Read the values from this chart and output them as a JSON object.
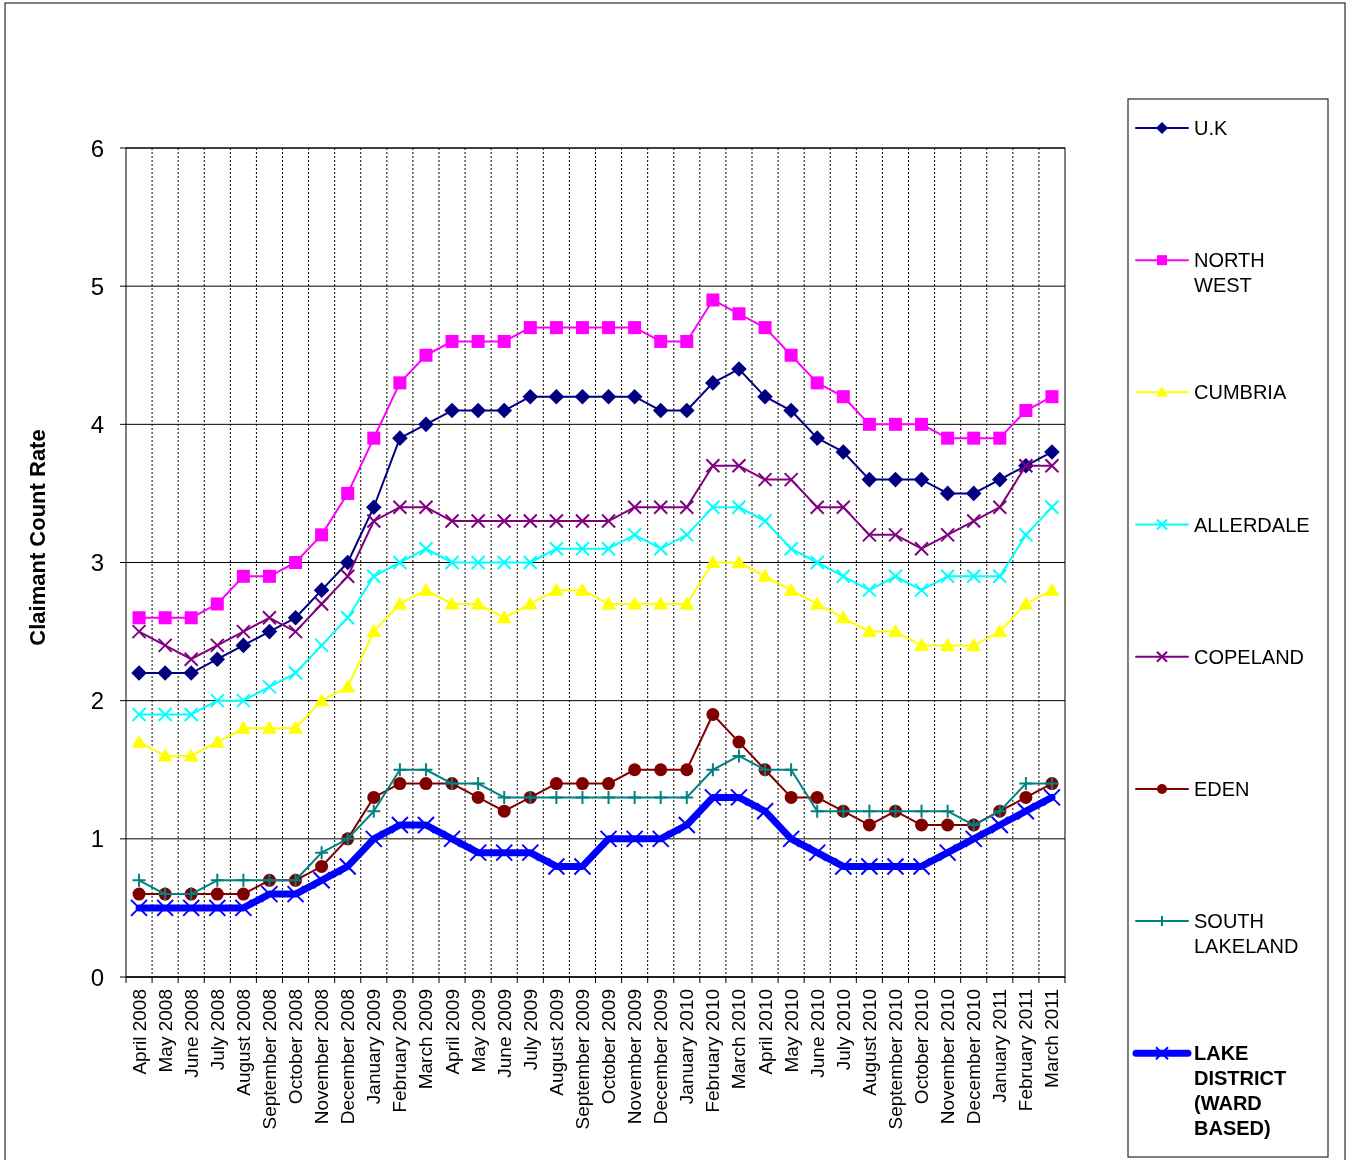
{
  "chart_data": {
    "type": "line",
    "ylabel": "Claimant Count Rate",
    "categories": [
      "April 2008",
      "May 2008",
      "June 2008",
      "July 2008",
      "August 2008",
      "September 2008",
      "October 2008",
      "November 2008",
      "December 2008",
      "January 2009",
      "February 2009",
      "March 2009",
      "April 2009",
      "May 2009",
      "June 2009",
      "July 2009",
      "August 2009",
      "September 2009",
      "October 2009",
      "November 2009",
      "December 2009",
      "January 2010",
      "February 2010",
      "March 2010",
      "April 2010",
      "May 2010",
      "June 2010",
      "July 2010",
      "August 2010",
      "September 2010",
      "October 2010",
      "November 2010",
      "December 2010",
      "January 2011",
      "February 2011",
      "March 2011"
    ],
    "series": [
      {
        "name": "U.K",
        "color": "#000080",
        "marker": "diamond",
        "values": [
          2.2,
          2.2,
          2.2,
          2.3,
          2.4,
          2.5,
          2.6,
          2.8,
          3.0,
          3.4,
          3.9,
          4.0,
          4.1,
          4.1,
          4.1,
          4.2,
          4.2,
          4.2,
          4.2,
          4.2,
          4.1,
          4.1,
          4.3,
          4.4,
          4.2,
          4.1,
          3.9,
          3.8,
          3.6,
          3.6,
          3.6,
          3.5,
          3.5,
          3.6,
          3.7,
          3.8
        ]
      },
      {
        "name": "NORTH WEST",
        "color": "#ff00ff",
        "marker": "square",
        "values": [
          2.6,
          2.6,
          2.6,
          2.7,
          2.9,
          2.9,
          3.0,
          3.2,
          3.5,
          3.9,
          4.3,
          4.5,
          4.6,
          4.6,
          4.6,
          4.7,
          4.7,
          4.7,
          4.7,
          4.7,
          4.6,
          4.6,
          4.9,
          4.8,
          4.7,
          4.5,
          4.3,
          4.2,
          4.0,
          4.0,
          4.0,
          3.9,
          3.9,
          3.9,
          4.1,
          4.2
        ]
      },
      {
        "name": "CUMBRIA",
        "color": "#ffff00",
        "marker": "triangle",
        "values": [
          1.7,
          1.6,
          1.6,
          1.7,
          1.8,
          1.8,
          1.8,
          2.0,
          2.1,
          2.5,
          2.7,
          2.8,
          2.7,
          2.7,
          2.6,
          2.7,
          2.8,
          2.8,
          2.7,
          2.7,
          2.7,
          2.7,
          3.0,
          3.0,
          2.9,
          2.8,
          2.7,
          2.6,
          2.5,
          2.5,
          2.4,
          2.4,
          2.4,
          2.5,
          2.7,
          2.8
        ]
      },
      {
        "name": "ALLERDALE",
        "color": "#00ffff",
        "marker": "cross",
        "values": [
          1.9,
          1.9,
          1.9,
          2.0,
          2.0,
          2.1,
          2.2,
          2.4,
          2.6,
          2.9,
          3.0,
          3.1,
          3.0,
          3.0,
          3.0,
          3.0,
          3.1,
          3.1,
          3.1,
          3.2,
          3.1,
          3.2,
          3.4,
          3.4,
          3.3,
          3.1,
          3.0,
          2.9,
          2.8,
          2.9,
          2.8,
          2.9,
          2.9,
          2.9,
          3.2,
          3.4
        ]
      },
      {
        "name": "COPELAND",
        "color": "#800080",
        "marker": "cross",
        "values": [
          2.5,
          2.4,
          2.3,
          2.4,
          2.5,
          2.6,
          2.5,
          2.7,
          2.9,
          3.3,
          3.4,
          3.4,
          3.3,
          3.3,
          3.3,
          3.3,
          3.3,
          3.3,
          3.3,
          3.4,
          3.4,
          3.4,
          3.7,
          3.7,
          3.6,
          3.6,
          3.4,
          3.4,
          3.2,
          3.2,
          3.1,
          3.2,
          3.3,
          3.4,
          3.7,
          3.7
        ]
      },
      {
        "name": "EDEN",
        "color": "#800000",
        "marker": "circle",
        "values": [
          0.6,
          0.6,
          0.6,
          0.6,
          0.6,
          0.7,
          0.7,
          0.8,
          1.0,
          1.3,
          1.4,
          1.4,
          1.4,
          1.3,
          1.2,
          1.3,
          1.4,
          1.4,
          1.4,
          1.5,
          1.5,
          1.5,
          1.9,
          1.7,
          1.5,
          1.3,
          1.3,
          1.2,
          1.1,
          1.2,
          1.1,
          1.1,
          1.1,
          1.2,
          1.3,
          1.4
        ]
      },
      {
        "name": "SOUTH LAKELAND",
        "color": "#008080",
        "marker": "plus",
        "values": [
          0.7,
          0.6,
          0.6,
          0.7,
          0.7,
          0.7,
          0.7,
          0.9,
          1.0,
          1.2,
          1.5,
          1.5,
          1.4,
          1.4,
          1.3,
          1.3,
          1.3,
          1.3,
          1.3,
          1.3,
          1.3,
          1.3,
          1.5,
          1.6,
          1.5,
          1.5,
          1.2,
          1.2,
          1.2,
          1.2,
          1.2,
          1.2,
          1.1,
          1.2,
          1.4,
          1.4
        ]
      },
      {
        "name": "LAKE DISTRICT (WARD BASED)",
        "color": "#0000ff",
        "marker": "cross",
        "values": [
          0.5,
          0.5,
          0.5,
          0.5,
          0.5,
          0.6,
          0.6,
          0.7,
          0.8,
          1.0,
          1.1,
          1.1,
          1.0,
          0.9,
          0.9,
          0.9,
          0.8,
          0.8,
          1.0,
          1.0,
          1.0,
          1.1,
          1.3,
          1.3,
          1.2,
          1.0,
          0.9,
          0.8,
          0.8,
          0.8,
          0.8,
          0.9,
          1.0,
          1.1,
          1.2,
          1.3
        ]
      }
    ],
    "ylim": [
      0,
      6
    ],
    "yticks": [
      0,
      1,
      2,
      3,
      4,
      5,
      6
    ],
    "grid": true,
    "legend": "right"
  }
}
